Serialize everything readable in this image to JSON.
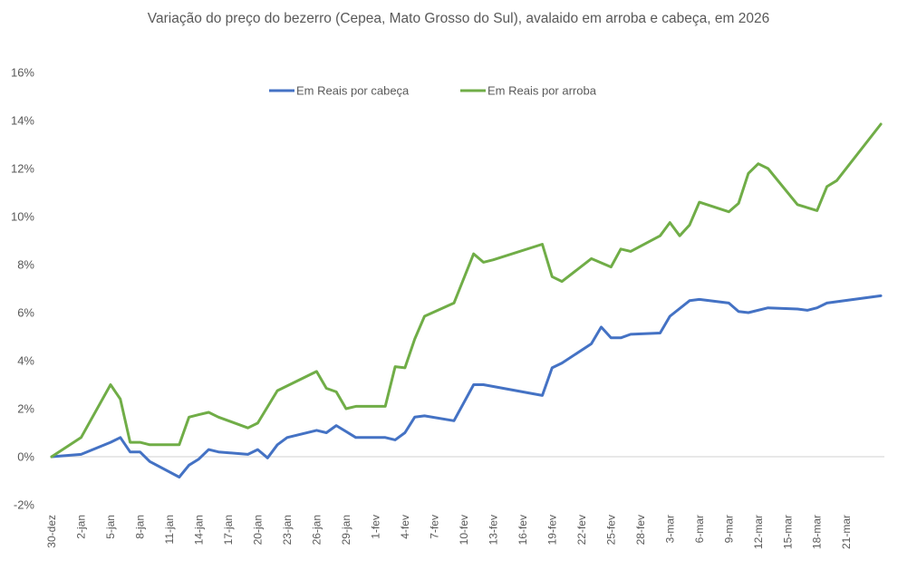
{
  "chart_data": {
    "type": "line",
    "title": "Variação do preço do bezerro (Cepea, Mato Grosso do Sul), avalaido em arroba e cabeça, em 2026",
    "xlabel": "",
    "ylabel": "",
    "ylim": [
      -2,
      16
    ],
    "yticks": [
      "16%",
      "14%",
      "12%",
      "10%",
      "8%",
      "6%",
      "4%",
      "2%",
      "0%",
      "-2%"
    ],
    "ytick_values": [
      16,
      14,
      12,
      10,
      8,
      6,
      4,
      2,
      0,
      -2
    ],
    "xtick_labels": [
      "30-dez",
      "2-jan",
      "5-jan",
      "8-jan",
      "11-jan",
      "14-jan",
      "17-jan",
      "20-jan",
      "23-jan",
      "26-jan",
      "29-jan",
      "1-fev",
      "4-fev",
      "7-fev",
      "10-fev",
      "13-fev",
      "16-fev",
      "19-fev",
      "22-fev",
      "25-fev",
      "28-fev",
      "3-mar",
      "6-mar",
      "9-mar",
      "12-mar",
      "15-mar",
      "18-mar",
      "21-mar"
    ],
    "x_unit": "days since 30-dez",
    "grid": false,
    "zero_line": true,
    "legend_position": "top",
    "series": [
      {
        "name": "Em Reais por cabeça",
        "color": "#4472C4",
        "points": [
          [
            0,
            0.0
          ],
          [
            3,
            0.1
          ],
          [
            6,
            0.6
          ],
          [
            7,
            0.8
          ],
          [
            8,
            0.2
          ],
          [
            9,
            0.2
          ],
          [
            10,
            -0.2
          ],
          [
            13,
            -0.85
          ],
          [
            14,
            -0.35
          ],
          [
            15,
            -0.1
          ],
          [
            16,
            0.3
          ],
          [
            17,
            0.2
          ],
          [
            20,
            0.1
          ],
          [
            21,
            0.3
          ],
          [
            22,
            -0.05
          ],
          [
            23,
            0.5
          ],
          [
            24,
            0.8
          ],
          [
            27,
            1.1
          ],
          [
            28,
            1.0
          ],
          [
            29,
            1.3
          ],
          [
            31,
            0.8
          ],
          [
            34,
            0.8
          ],
          [
            35,
            0.7
          ],
          [
            36,
            1.0
          ],
          [
            37,
            1.65
          ],
          [
            38,
            1.7
          ],
          [
            41,
            1.5
          ],
          [
            43,
            3.0
          ],
          [
            44,
            3.0
          ],
          [
            50,
            2.55
          ],
          [
            51,
            3.7
          ],
          [
            52,
            3.9
          ],
          [
            55,
            4.7
          ],
          [
            56,
            5.4
          ],
          [
            57,
            4.95
          ],
          [
            58,
            4.95
          ],
          [
            59,
            5.1
          ],
          [
            62,
            5.15
          ],
          [
            63,
            5.85
          ],
          [
            65,
            6.5
          ],
          [
            66,
            6.55
          ],
          [
            69,
            6.4
          ],
          [
            70,
            6.05
          ],
          [
            71,
            6.0
          ],
          [
            73,
            6.2
          ],
          [
            76,
            6.15
          ],
          [
            77,
            6.1
          ],
          [
            78,
            6.2
          ],
          [
            79,
            6.4
          ],
          [
            84.5,
            6.7
          ]
        ]
      },
      {
        "name": "Em Reais por arroba",
        "color": "#70AD47",
        "points": [
          [
            0,
            0.0
          ],
          [
            3,
            0.8
          ],
          [
            6,
            3.0
          ],
          [
            7,
            2.4
          ],
          [
            8,
            0.6
          ],
          [
            9,
            0.6
          ],
          [
            10,
            0.5
          ],
          [
            13,
            0.5
          ],
          [
            14,
            1.65
          ],
          [
            15,
            1.75
          ],
          [
            16,
            1.85
          ],
          [
            17,
            1.65
          ],
          [
            20,
            1.2
          ],
          [
            21,
            1.4
          ],
          [
            23,
            2.75
          ],
          [
            27,
            3.55
          ],
          [
            28,
            2.85
          ],
          [
            29,
            2.7
          ],
          [
            30,
            2.0
          ],
          [
            31,
            2.1
          ],
          [
            34,
            2.1
          ],
          [
            35,
            3.75
          ],
          [
            36,
            3.7
          ],
          [
            37,
            4.9
          ],
          [
            38,
            5.85
          ],
          [
            41,
            6.4
          ],
          [
            43,
            8.45
          ],
          [
            44,
            8.1
          ],
          [
            45,
            8.2
          ],
          [
            50,
            8.85
          ],
          [
            51,
            7.5
          ],
          [
            52,
            7.3
          ],
          [
            55,
            8.25
          ],
          [
            57,
            7.9
          ],
          [
            58,
            8.65
          ],
          [
            59,
            8.55
          ],
          [
            62,
            9.2
          ],
          [
            63,
            9.75
          ],
          [
            64,
            9.2
          ],
          [
            65,
            9.65
          ],
          [
            66,
            10.6
          ],
          [
            69,
            10.2
          ],
          [
            70,
            10.55
          ],
          [
            71,
            11.8
          ],
          [
            72,
            12.2
          ],
          [
            73,
            12.0
          ],
          [
            76,
            10.5
          ],
          [
            78,
            10.25
          ],
          [
            79,
            11.25
          ],
          [
            80,
            11.5
          ],
          [
            84.5,
            13.85
          ]
        ]
      }
    ]
  }
}
